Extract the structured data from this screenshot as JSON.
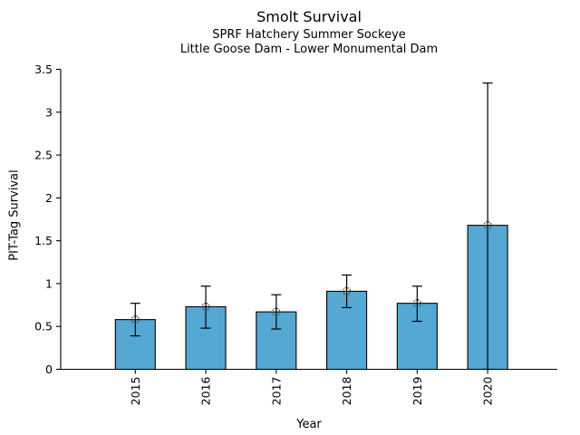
{
  "figure": {
    "title": "Smolt Survival",
    "subtitle1": "SPRF Hatchery Summer Sockeye",
    "subtitle2": "Little Goose Dam - Lower Monumental Dam"
  },
  "chart_data": {
    "type": "bar",
    "title": "Smolt Survival",
    "subtitles": [
      "SPRF Hatchery Summer Sockeye",
      "Little Goose Dam - Lower Monumental Dam"
    ],
    "xlabel": "Year",
    "ylabel": "PIT-Tag Survival",
    "categories": [
      "2015",
      "2016",
      "2017",
      "2018",
      "2019",
      "2020"
    ],
    "values": [
      0.58,
      0.73,
      0.67,
      0.91,
      0.77,
      1.68
    ],
    "error_low": [
      0.39,
      0.48,
      0.47,
      0.72,
      0.56,
      0.0
    ],
    "error_high": [
      0.77,
      0.97,
      0.87,
      1.1,
      0.97,
      3.34
    ],
    "ylim": [
      0,
      3.5
    ],
    "yticks": [
      0,
      0.5,
      1,
      1.5,
      2,
      2.5,
      3,
      3.5
    ],
    "ytick_labels": [
      "0",
      "0.5",
      "1",
      "1.5",
      "2",
      "2.5",
      "3",
      "3.5"
    ],
    "grid": false,
    "legend": null,
    "bar_color": "#56a8d4",
    "bar_edge_color": "#000000",
    "error_color": "#000000",
    "marker": "open-circle-dotted",
    "marker_color": "#3a3a3a",
    "axis_color": "#000000"
  }
}
